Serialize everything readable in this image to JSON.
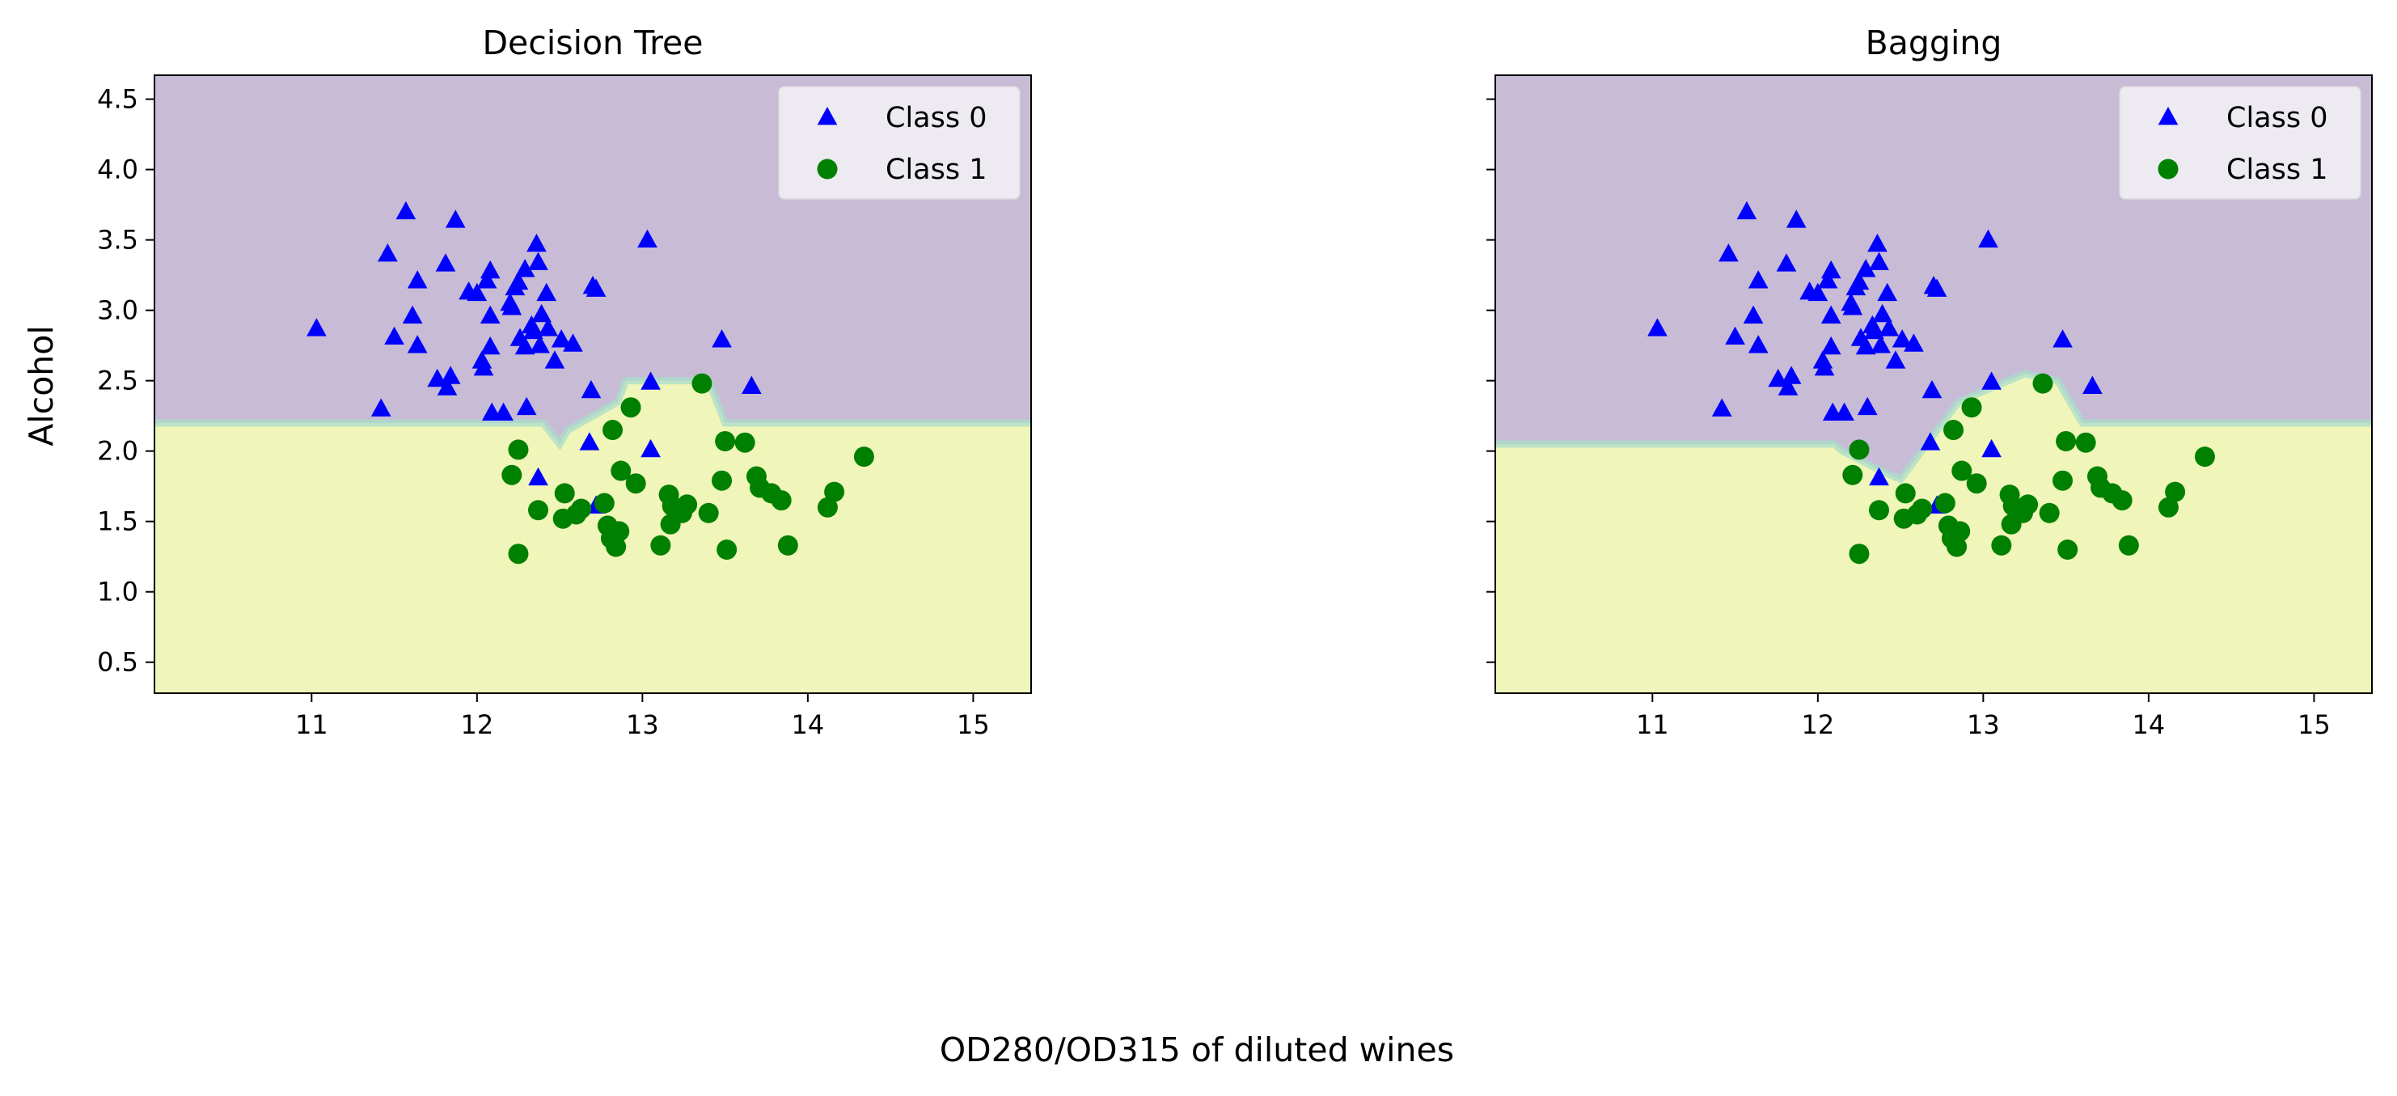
{
  "figure": {
    "supxlabel": "OD280/OD315 of diluted wines",
    "supylabel": "Alcohol"
  },
  "colors": {
    "class0_region": "#c8bbd6",
    "class1_region": "#f0f5b9",
    "boundary": "#a9dcc9",
    "class0_marker": "#0000ff",
    "class1_marker": "#008000",
    "legend_bg": "#f2eff5",
    "axes": "#000000"
  },
  "chart_data": [
    {
      "type": "scatter",
      "title": "Decision Tree",
      "xlabel": "",
      "ylabel": "Alcohol",
      "xlim": [
        10.05,
        15.35
      ],
      "ylim": [
        0.28,
        4.67
      ],
      "xticks": [
        11,
        12,
        13,
        14,
        15
      ],
      "yticks": [
        0.5,
        1.0,
        1.5,
        2.0,
        2.5,
        3.0,
        3.5,
        4.0,
        4.5
      ],
      "ytick_labels": [
        "0.5",
        "1.0",
        "1.5",
        "2.0",
        "2.5",
        "3.0",
        "3.5",
        "4.0",
        "4.5"
      ],
      "grid": false,
      "legend": {
        "position": "top-right",
        "entries": [
          "Class 0",
          "Class 1"
        ]
      },
      "decision_boundary": {
        "description_points_x": [
          10.05,
          12.4,
          12.5,
          12.55,
          12.85,
          12.9,
          13.4,
          13.45,
          13.5,
          15.35
        ],
        "boundary_y": [
          2.2,
          2.2,
          2.05,
          2.15,
          2.35,
          2.5,
          2.5,
          2.35,
          2.2,
          2.2
        ],
        "region_above": "Class 0",
        "region_below": "Class 1"
      },
      "series": [
        {
          "name": "Class 0",
          "marker": "triangle",
          "points": [
            [
              11.03,
              2.87
            ],
            [
              11.42,
              2.3
            ],
            [
              11.46,
              3.4
            ],
            [
              11.5,
              2.81
            ],
            [
              11.57,
              3.7
            ],
            [
              11.61,
              2.96
            ],
            [
              11.64,
              3.21
            ],
            [
              11.64,
              2.75
            ],
            [
              11.76,
              2.51
            ],
            [
              11.82,
              2.45
            ],
            [
              11.81,
              3.33
            ],
            [
              11.84,
              2.53
            ],
            [
              11.87,
              3.64
            ],
            [
              11.95,
              3.13
            ],
            [
              12.0,
              3.12
            ],
            [
              12.03,
              2.64
            ],
            [
              12.04,
              2.59
            ],
            [
              12.06,
              3.21
            ],
            [
              12.08,
              3.28
            ],
            [
              12.08,
              2.96
            ],
            [
              12.08,
              2.74
            ],
            [
              12.09,
              2.27
            ],
            [
              12.16,
              2.27
            ],
            [
              12.2,
              3.05
            ],
            [
              12.21,
              3.02
            ],
            [
              12.23,
              3.16
            ],
            [
              12.25,
              3.2
            ],
            [
              12.26,
              2.8
            ],
            [
              12.29,
              2.74
            ],
            [
              12.29,
              3.29
            ],
            [
              12.3,
              2.31
            ],
            [
              12.33,
              2.89
            ],
            [
              12.34,
              2.85
            ],
            [
              12.36,
              3.47
            ],
            [
              12.37,
              3.34
            ],
            [
              12.37,
              1.81
            ],
            [
              12.38,
              2.75
            ],
            [
              12.39,
              2.97
            ],
            [
              12.42,
              3.12
            ],
            [
              12.43,
              2.87
            ],
            [
              12.47,
              2.64
            ],
            [
              12.51,
              2.79
            ],
            [
              12.58,
              2.76
            ],
            [
              12.68,
              2.06
            ],
            [
              12.69,
              2.43
            ],
            [
              12.7,
              3.17
            ],
            [
              12.72,
              3.15
            ],
            [
              12.72,
              1.61
            ],
            [
              13.03,
              3.5
            ],
            [
              13.05,
              2.49
            ],
            [
              13.05,
              2.01
            ],
            [
              13.48,
              2.79
            ],
            [
              13.66,
              2.46
            ]
          ]
        },
        {
          "name": "Class 1",
          "marker": "circle",
          "points": [
            [
              12.21,
              1.83
            ],
            [
              12.25,
              2.01
            ],
            [
              12.25,
              1.27
            ],
            [
              12.37,
              1.58
            ],
            [
              12.52,
              1.52
            ],
            [
              12.53,
              1.7
            ],
            [
              12.6,
              1.55
            ],
            [
              12.63,
              1.59
            ],
            [
              12.77,
              1.63
            ],
            [
              12.79,
              1.47
            ],
            [
              12.81,
              1.38
            ],
            [
              12.82,
              2.15
            ],
            [
              12.84,
              1.32
            ],
            [
              12.86,
              1.43
            ],
            [
              12.87,
              1.86
            ],
            [
              12.93,
              2.31
            ],
            [
              12.96,
              1.77
            ],
            [
              13.11,
              1.33
            ],
            [
              13.16,
              1.69
            ],
            [
              13.17,
              1.48
            ],
            [
              13.18,
              1.61
            ],
            [
              13.24,
              1.56
            ],
            [
              13.27,
              1.62
            ],
            [
              13.36,
              2.48
            ],
            [
              13.4,
              1.56
            ],
            [
              13.48,
              1.79
            ],
            [
              13.5,
              2.07
            ],
            [
              13.51,
              1.3
            ],
            [
              13.62,
              2.06
            ],
            [
              13.69,
              1.82
            ],
            [
              13.71,
              1.74
            ],
            [
              13.78,
              1.7
            ],
            [
              13.84,
              1.65
            ],
            [
              13.88,
              1.33
            ],
            [
              14.12,
              1.6
            ],
            [
              14.16,
              1.71
            ],
            [
              14.34,
              1.96
            ]
          ]
        }
      ]
    },
    {
      "type": "scatter",
      "title": "Bagging",
      "xlabel": "",
      "ylabel": "",
      "xlim": [
        10.05,
        15.35
      ],
      "ylim": [
        0.28,
        4.67
      ],
      "xticks": [
        11,
        12,
        13,
        14,
        15
      ],
      "yticks": [
        0.5,
        1.0,
        1.5,
        2.0,
        2.5,
        3.0,
        3.5,
        4.0,
        4.5
      ],
      "ytick_labels": [],
      "grid": false,
      "legend": {
        "position": "top-right",
        "entries": [
          "Class 0",
          "Class 1"
        ]
      },
      "decision_boundary": {
        "description_points_x": [
          10.05,
          12.1,
          12.15,
          12.4,
          12.5,
          12.85,
          13.25,
          13.45,
          13.6,
          15.35
        ],
        "boundary_y": [
          2.05,
          2.05,
          2.0,
          1.85,
          1.8,
          2.35,
          2.55,
          2.5,
          2.2,
          2.2
        ],
        "region_above": "Class 0",
        "region_below": "Class 1"
      },
      "series": [
        {
          "name": "Class 0",
          "marker": "triangle",
          "points": [
            [
              11.03,
              2.87
            ],
            [
              11.42,
              2.3
            ],
            [
              11.46,
              3.4
            ],
            [
              11.5,
              2.81
            ],
            [
              11.57,
              3.7
            ],
            [
              11.61,
              2.96
            ],
            [
              11.64,
              3.21
            ],
            [
              11.64,
              2.75
            ],
            [
              11.76,
              2.51
            ],
            [
              11.82,
              2.45
            ],
            [
              11.81,
              3.33
            ],
            [
              11.84,
              2.53
            ],
            [
              11.87,
              3.64
            ],
            [
              11.95,
              3.13
            ],
            [
              12.0,
              3.12
            ],
            [
              12.03,
              2.64
            ],
            [
              12.04,
              2.59
            ],
            [
              12.06,
              3.21
            ],
            [
              12.08,
              3.28
            ],
            [
              12.08,
              2.96
            ],
            [
              12.08,
              2.74
            ],
            [
              12.09,
              2.27
            ],
            [
              12.16,
              2.27
            ],
            [
              12.2,
              3.05
            ],
            [
              12.21,
              3.02
            ],
            [
              12.23,
              3.16
            ],
            [
              12.25,
              3.2
            ],
            [
              12.26,
              2.8
            ],
            [
              12.29,
              2.74
            ],
            [
              12.29,
              3.29
            ],
            [
              12.3,
              2.31
            ],
            [
              12.33,
              2.89
            ],
            [
              12.34,
              2.85
            ],
            [
              12.36,
              3.47
            ],
            [
              12.37,
              3.34
            ],
            [
              12.37,
              1.81
            ],
            [
              12.38,
              2.75
            ],
            [
              12.39,
              2.97
            ],
            [
              12.42,
              3.12
            ],
            [
              12.43,
              2.87
            ],
            [
              12.47,
              2.64
            ],
            [
              12.51,
              2.79
            ],
            [
              12.58,
              2.76
            ],
            [
              12.68,
              2.06
            ],
            [
              12.69,
              2.43
            ],
            [
              12.7,
              3.17
            ],
            [
              12.72,
              3.15
            ],
            [
              12.72,
              1.61
            ],
            [
              13.03,
              3.5
            ],
            [
              13.05,
              2.49
            ],
            [
              13.05,
              2.01
            ],
            [
              13.48,
              2.79
            ],
            [
              13.66,
              2.46
            ]
          ]
        },
        {
          "name": "Class 1",
          "marker": "circle",
          "points": [
            [
              12.21,
              1.83
            ],
            [
              12.25,
              2.01
            ],
            [
              12.25,
              1.27
            ],
            [
              12.37,
              1.58
            ],
            [
              12.52,
              1.52
            ],
            [
              12.53,
              1.7
            ],
            [
              12.6,
              1.55
            ],
            [
              12.63,
              1.59
            ],
            [
              12.77,
              1.63
            ],
            [
              12.79,
              1.47
            ],
            [
              12.81,
              1.38
            ],
            [
              12.82,
              2.15
            ],
            [
              12.84,
              1.32
            ],
            [
              12.86,
              1.43
            ],
            [
              12.87,
              1.86
            ],
            [
              12.93,
              2.31
            ],
            [
              12.96,
              1.77
            ],
            [
              13.11,
              1.33
            ],
            [
              13.16,
              1.69
            ],
            [
              13.17,
              1.48
            ],
            [
              13.18,
              1.61
            ],
            [
              13.24,
              1.56
            ],
            [
              13.27,
              1.62
            ],
            [
              13.36,
              2.48
            ],
            [
              13.4,
              1.56
            ],
            [
              13.48,
              1.79
            ],
            [
              13.5,
              2.07
            ],
            [
              13.51,
              1.3
            ],
            [
              13.62,
              2.06
            ],
            [
              13.69,
              1.82
            ],
            [
              13.71,
              1.74
            ],
            [
              13.78,
              1.7
            ],
            [
              13.84,
              1.65
            ],
            [
              13.88,
              1.33
            ],
            [
              14.12,
              1.6
            ],
            [
              14.16,
              1.71
            ],
            [
              14.34,
              1.96
            ]
          ]
        }
      ]
    }
  ]
}
